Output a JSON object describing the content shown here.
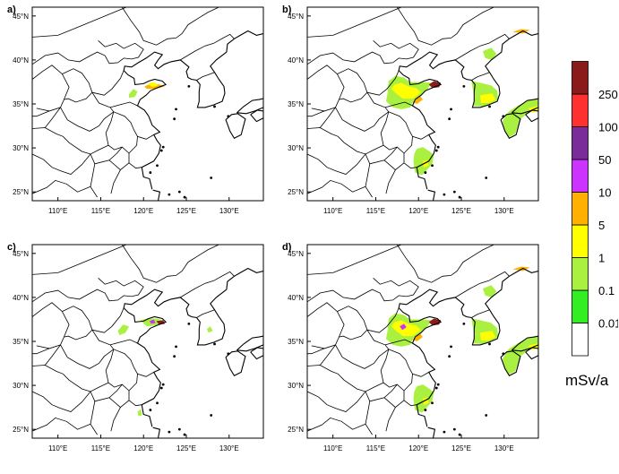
{
  "panels": [
    {
      "letter": "a)",
      "fills": [
        "a1",
        "a2",
        "a3"
      ]
    },
    {
      "letter": "b)",
      "fills": [
        "b1",
        "b2",
        "b3",
        "b4",
        "b5",
        "b6",
        "b7",
        "b8",
        "b9",
        "b10",
        "b11",
        "b12",
        "b13"
      ]
    },
    {
      "letter": "c)",
      "fills": [
        "c1",
        "c2",
        "c3",
        "c4",
        "c5",
        "c6"
      ]
    },
    {
      "letter": "d)",
      "fills": [
        "b1",
        "b2",
        "b3",
        "b4",
        "b5",
        "b6",
        "b7",
        "b8",
        "b9",
        "b10",
        "b11",
        "b12",
        "b13",
        "d1"
      ]
    }
  ],
  "lat_labels": [
    "45°N",
    "40°N",
    "35°N",
    "30°N",
    "25°N"
  ],
  "lon_labels": [
    "110°E",
    "115°E",
    "120°E",
    "125°E",
    "130°E"
  ],
  "legend": {
    "unit": "mSv/a",
    "thresholds": [
      "0.01",
      "0.1",
      "1",
      "5",
      "10",
      "50",
      "100",
      "250"
    ],
    "colors": [
      "#ffffff",
      "#33ee22",
      "#aaf040",
      "#ffff00",
      "#ffb000",
      "#cc33ff",
      "#7a2c9a",
      "#ff3030",
      "#8b1a1a"
    ]
  }
}
